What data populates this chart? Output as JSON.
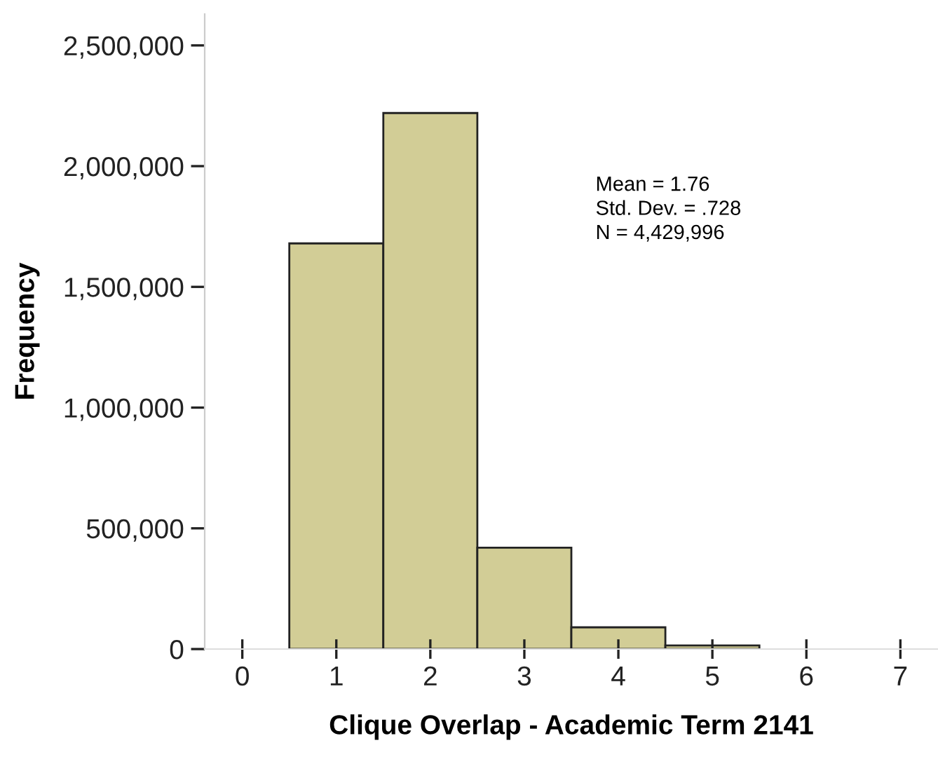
{
  "chart_data": {
    "type": "histogram",
    "xlabel": "Clique Overlap - Academic Term 2141",
    "ylabel": "Frequency",
    "bins": [
      0.5,
      1.5,
      2.5,
      3.5,
      4.5,
      5.5
    ],
    "values": [
      1680000,
      2220000,
      420000,
      90000,
      15000
    ],
    "color": "#d2cd96",
    "xlim": [
      -0.4,
      7.4
    ],
    "xticks": [
      0,
      1,
      2,
      3,
      4,
      5,
      6,
      7
    ],
    "ylim": [
      0,
      2630000
    ],
    "yticks": [
      {
        "value": 0,
        "label": "0"
      },
      {
        "value": 500000,
        "label": "500,000"
      },
      {
        "value": 1000000,
        "label": "1,000,000"
      },
      {
        "value": 1500000,
        "label": "1,500,000"
      },
      {
        "value": 2000000,
        "label": "2,000,000"
      },
      {
        "value": 2500000,
        "label": "2,500,000"
      }
    ],
    "annotations": [
      "Mean = 1.76",
      "Std. Dev. = .728",
      "N = 4,429,996"
    ],
    "grid": false
  }
}
